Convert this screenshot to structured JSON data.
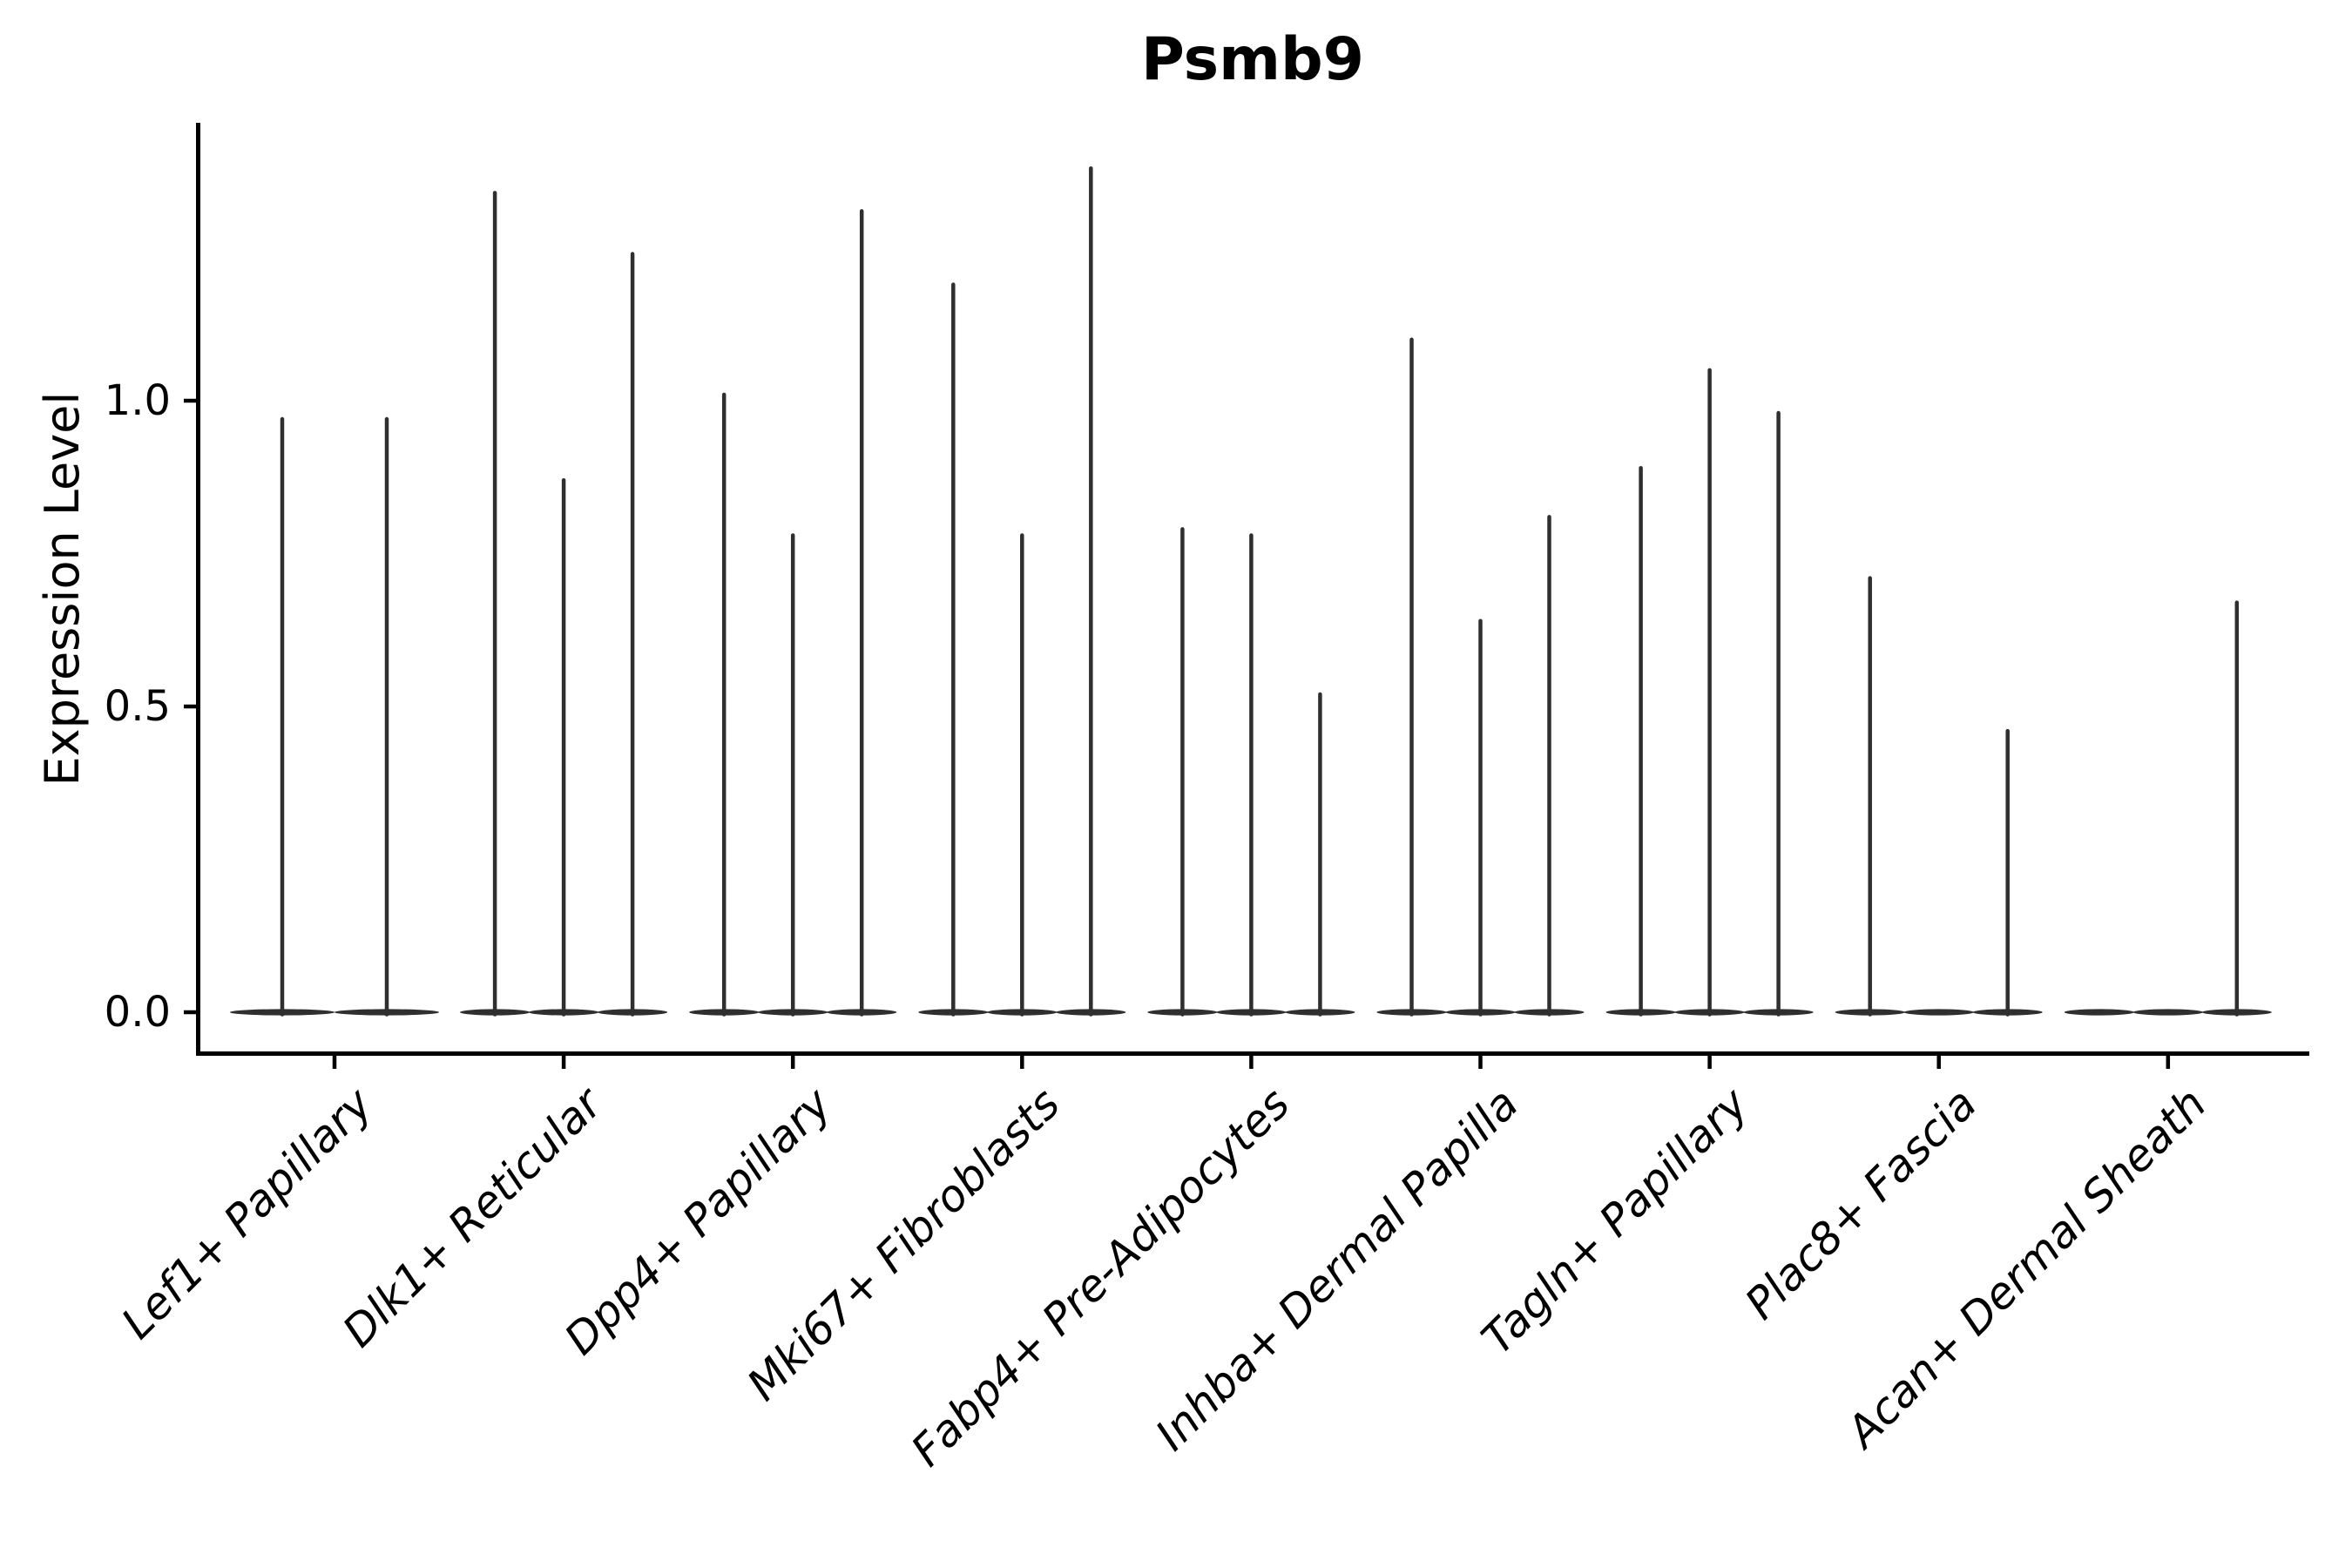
{
  "chart_data": {
    "type": "violin",
    "title": "Psmb9",
    "xlabel": "",
    "ylabel": "Expression Level",
    "yticks": [
      0.0,
      0.5,
      1.0
    ],
    "ytick_labels": [
      "0.0",
      "0.5",
      "1.0"
    ],
    "ylim": [
      -0.07,
      1.45
    ],
    "grid": false,
    "legend": "none",
    "x_tick_rotation": 45,
    "x_tick_style": "italic",
    "categories": [
      "Lef1+ Papillary",
      "Dlk1+ Reticular",
      "Dpp4+ Papillary",
      "Mki67+ Fibroblasts",
      "Fabp4+ Pre-Adipocytes",
      "Inhba+ Dermal Papilla",
      "Tagln+ Papillary",
      "Plac8+ Fascia",
      "Acan+ Dermal Sheath"
    ],
    "groups": [
      {
        "category": "Lef1+ Papillary",
        "violin_peaks": [
          0.97,
          0.97
        ]
      },
      {
        "category": "Dlk1+ Reticular",
        "violin_peaks": [
          1.34,
          0.87,
          1.24
        ]
      },
      {
        "category": "Dpp4+ Papillary",
        "violin_peaks": [
          1.01,
          0.78,
          1.31
        ]
      },
      {
        "category": "Mki67+ Fibroblasts",
        "violin_peaks": [
          1.19,
          0.78,
          1.38
        ]
      },
      {
        "category": "Fabp4+ Pre-Adipocytes",
        "violin_peaks": [
          0.79,
          0.78,
          0.52
        ]
      },
      {
        "category": "Inhba+ Dermal Papilla",
        "violin_peaks": [
          1.1,
          0.64,
          0.81
        ]
      },
      {
        "category": "Tagln+ Papillary",
        "violin_peaks": [
          0.89,
          1.05,
          0.98
        ]
      },
      {
        "category": "Plac8+ Fascia",
        "violin_peaks": [
          0.71,
          0.0,
          0.46
        ]
      },
      {
        "category": "Acan+ Dermal Sheath",
        "violin_peaks": [
          0.0,
          0.0,
          0.67
        ]
      }
    ],
    "colors": {
      "violin": "#2f2f2f",
      "axis": "#000000",
      "text": "#000000",
      "background": "#ffffff"
    }
  }
}
